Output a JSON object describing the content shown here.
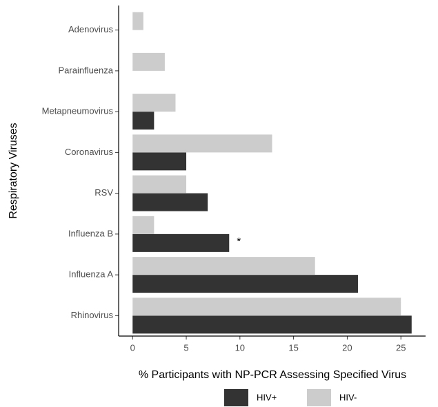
{
  "chart_data": {
    "type": "bar",
    "orientation": "horizontal",
    "x_label": "% Participants with NP-PCR Assessing Specified Virus",
    "y_label": "Respiratory Viruses",
    "categories": [
      "Adenovirus",
      "Parainfluenza",
      "Metapneumovirus",
      "Coronavirus",
      "RSV",
      "Influenza B",
      "Influenza A",
      "Rhinovirus"
    ],
    "series": [
      {
        "name": "HIV+",
        "color": "#333333",
        "values": [
          null,
          null,
          2,
          5,
          7,
          9,
          21,
          26
        ]
      },
      {
        "name": "HIV-",
        "color": "#cccccc",
        "values": [
          1,
          3,
          4,
          13,
          5,
          2,
          17,
          25
        ]
      }
    ],
    "xlim": [
      -1.3,
      27.3
    ],
    "xticks": [
      0,
      5,
      10,
      15,
      20,
      25
    ],
    "annotations": [
      {
        "text": "*",
        "category": "Influenza B",
        "series": "HIV+"
      }
    ],
    "legend": "bottom",
    "grid": false
  }
}
